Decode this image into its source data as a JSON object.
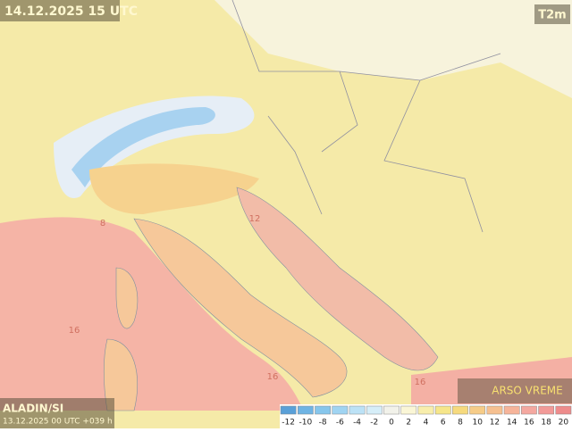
{
  "header": {
    "title": "14.12.2025 15 UTC",
    "parameter": "T2m"
  },
  "footer": {
    "model": "ALADIN/SI",
    "run": "13.12.2025 00 UTC +039 h",
    "logo": "ARSO VREME"
  },
  "legend": {
    "ticks": [
      -12,
      -10,
      -8,
      -6,
      -4,
      -2,
      0,
      2,
      4,
      6,
      8,
      10,
      12,
      14,
      16,
      18,
      20
    ],
    "colors": [
      "#5aa0d8",
      "#6fb4e4",
      "#86c6ec",
      "#a0d4f2",
      "#bce2f6",
      "#d6eef8",
      "#f2f2ea",
      "#faf6d6",
      "#f8eeac",
      "#f6e68a",
      "#f6da7e",
      "#f6cc88",
      "#f6c090",
      "#f6b49a",
      "#f4a8a0",
      "#f29a98",
      "#ee8c8c"
    ]
  },
  "contour_labels": [
    "12",
    "16",
    "16",
    "16",
    "8"
  ]
}
